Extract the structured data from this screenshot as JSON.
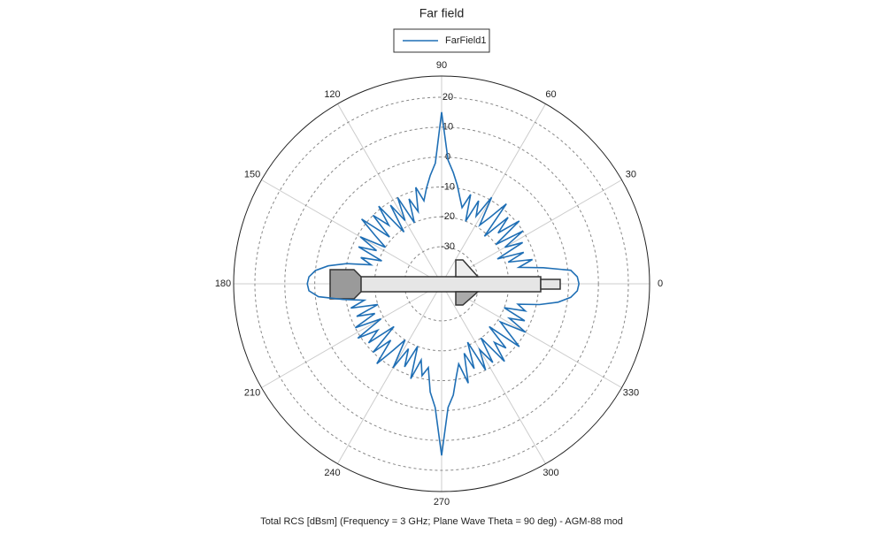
{
  "chart_data": {
    "type": "polar",
    "title": "Far field",
    "xlabel": "Total RCS [dBsm] (Frequency = 3 GHz; Plane Wave Theta = 90 deg) - AGM-88 mod",
    "x": [
      0,
      3,
      6,
      9,
      12,
      15,
      18,
      21,
      24,
      27,
      30,
      33,
      36,
      39,
      42,
      45,
      48,
      51,
      54,
      57,
      60,
      63,
      66,
      69,
      72,
      75,
      78,
      81,
      84,
      87,
      90,
      93,
      96,
      99,
      102,
      105,
      108,
      111,
      114,
      117,
      120,
      123,
      126,
      129,
      132,
      135,
      138,
      141,
      144,
      147,
      150,
      153,
      156,
      159,
      162,
      165,
      168,
      171,
      174,
      177,
      180,
      183,
      186,
      189,
      192,
      195,
      198,
      201,
      204,
      207,
      210,
      213,
      216,
      219,
      222,
      225,
      228,
      231,
      234,
      237,
      240,
      243,
      246,
      249,
      252,
      255,
      258,
      261,
      264,
      267,
      270,
      273,
      276,
      279,
      282,
      285,
      288,
      291,
      294,
      297,
      300,
      303,
      306,
      309,
      312,
      315,
      318,
      321,
      324,
      327,
      330,
      333,
      336,
      339,
      342,
      345,
      348,
      351,
      354,
      357
    ],
    "series": [
      {
        "name": "FarField1",
        "color": "#1f6fb5",
        "values": [
          3.5,
          3,
          1,
          -8,
          -16,
          -11,
          -19,
          -13,
          -22,
          -12,
          -18,
          -10,
          -20,
          -9,
          -17,
          -11,
          -21,
          -8,
          -15,
          -19,
          -9,
          -17,
          -12,
          -20,
          -11,
          -16,
          -13,
          -9,
          -5,
          -1,
          15,
          -2,
          -6,
          -10,
          -14,
          -9,
          -17,
          -12,
          -20,
          -10,
          -18,
          -11,
          -21,
          -9,
          -16,
          -10,
          -19,
          -8,
          -15,
          -20,
          -11,
          -18,
          -12,
          -21,
          -14,
          -18,
          -10,
          -4,
          0,
          2,
          2.5,
          2,
          -1,
          -9,
          -16,
          -11,
          -20,
          -12,
          -18,
          -10,
          -19,
          -9,
          -16,
          -11,
          -21,
          -10,
          -17,
          -8,
          -15,
          -20,
          -10,
          -18,
          -12,
          -20,
          -9,
          -16,
          -11,
          -14,
          -6,
          -1,
          15,
          -1,
          -5,
          -11,
          -15,
          -8,
          -18,
          -12,
          -21,
          -10,
          -17,
          -11,
          -20,
          -9,
          -16,
          -12,
          -21,
          -9,
          -15,
          -19,
          -10,
          -17,
          -12,
          -20,
          -13,
          -16,
          -9,
          -3,
          1,
          3
        ]
      }
    ],
    "xticks": [
      0,
      30,
      60,
      90,
      120,
      150,
      180,
      210,
      240,
      270,
      300,
      330
    ],
    "ylim": [
      -42.4,
      27.1
    ],
    "yticks": [
      -30,
      -20,
      -10,
      0,
      10,
      20
    ],
    "grid": true
  }
}
